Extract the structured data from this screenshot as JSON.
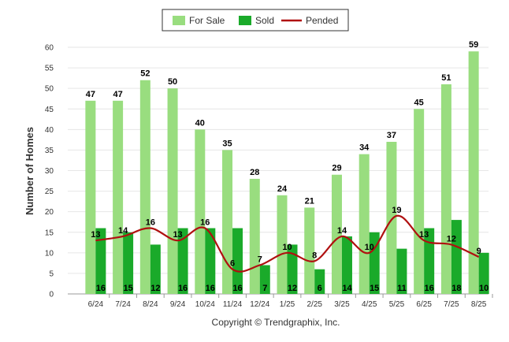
{
  "chart_data": {
    "type": "bar",
    "title": "",
    "xlabel": "",
    "ylabel": "Number of Homes",
    "ylim": [
      0,
      60
    ],
    "yticks": [
      0,
      5,
      10,
      15,
      20,
      25,
      30,
      35,
      40,
      45,
      50,
      55,
      60
    ],
    "grid": true,
    "legend_position": "top-center",
    "categories": [
      "6/24",
      "7/24",
      "8/24",
      "9/24",
      "10/24",
      "11/24",
      "12/24",
      "1/25",
      "2/25",
      "3/25",
      "4/25",
      "5/25",
      "6/25",
      "7/25",
      "8/25"
    ],
    "series": [
      {
        "name": "For Sale",
        "type": "bar",
        "color": "#99dd7f",
        "values": [
          47,
          47,
          52,
          50,
          40,
          35,
          28,
          24,
          21,
          29,
          34,
          37,
          45,
          51,
          59
        ]
      },
      {
        "name": "Sold",
        "type": "bar",
        "color": "#1aaa2a",
        "values": [
          16,
          15,
          12,
          16,
          16,
          16,
          7,
          12,
          6,
          14,
          15,
          11,
          16,
          18,
          10
        ]
      },
      {
        "name": "Pended",
        "type": "line",
        "color": "#b01010",
        "values": [
          13,
          14,
          16,
          13,
          16,
          6,
          7,
          10,
          8,
          14,
          10,
          19,
          13,
          12,
          9
        ]
      }
    ]
  },
  "footer": {
    "copyright": "Copyright © Trendgraphix, Inc."
  }
}
